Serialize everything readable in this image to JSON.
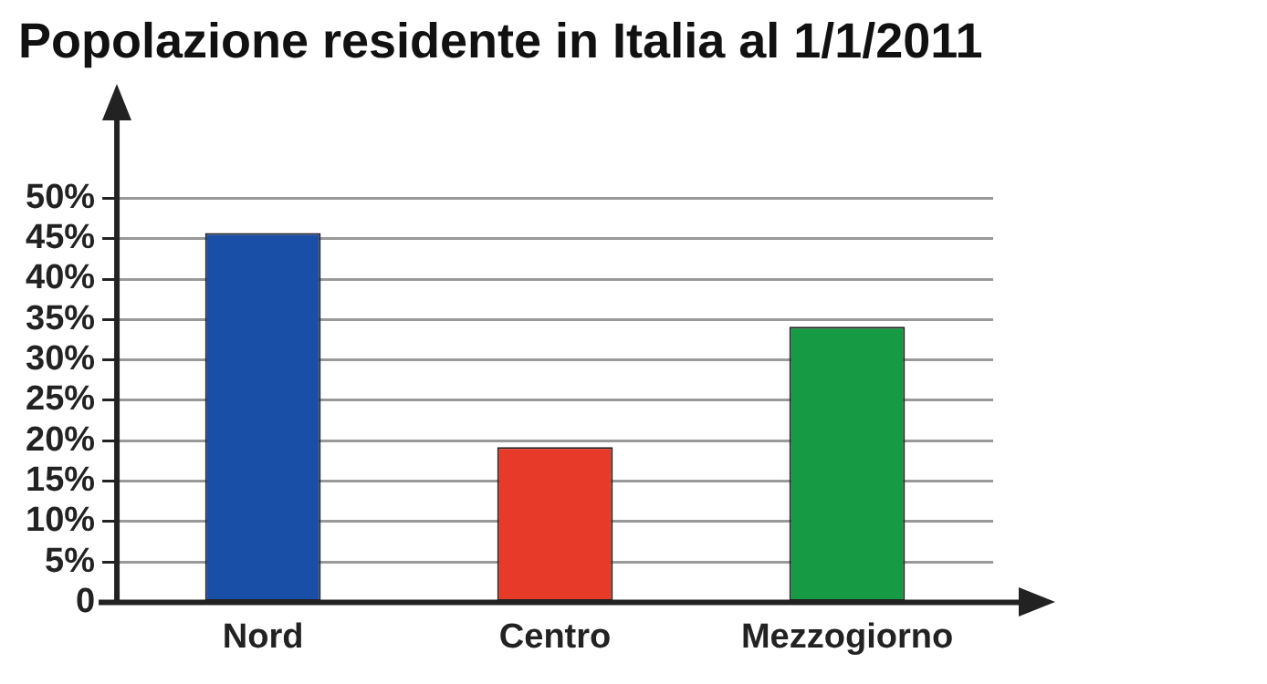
{
  "chart_data": {
    "type": "bar",
    "title": "Popolazione residente in Italia al 1/1/2011",
    "categories": [
      "Nord",
      "Centro",
      "Mezzogiorno"
    ],
    "values": [
      45.7,
      19.2,
      34.1
    ],
    "colors": [
      "#1a4fa8",
      "#e83a28",
      "#179a44"
    ],
    "ylim": [
      0,
      60
    ],
    "yticks": [
      {
        "value": 0,
        "label": "0"
      },
      {
        "value": 5,
        "label": "5%"
      },
      {
        "value": 10,
        "label": "10%"
      },
      {
        "value": 15,
        "label": "15%"
      },
      {
        "value": 20,
        "label": "20%"
      },
      {
        "value": 25,
        "label": "25%"
      },
      {
        "value": 30,
        "label": "30%"
      },
      {
        "value": 35,
        "label": "35%"
      },
      {
        "value": 40,
        "label": "40%"
      },
      {
        "value": 45,
        "label": "45%"
      },
      {
        "value": 50,
        "label": "50%"
      }
    ],
    "grid": "y",
    "legend": false
  }
}
